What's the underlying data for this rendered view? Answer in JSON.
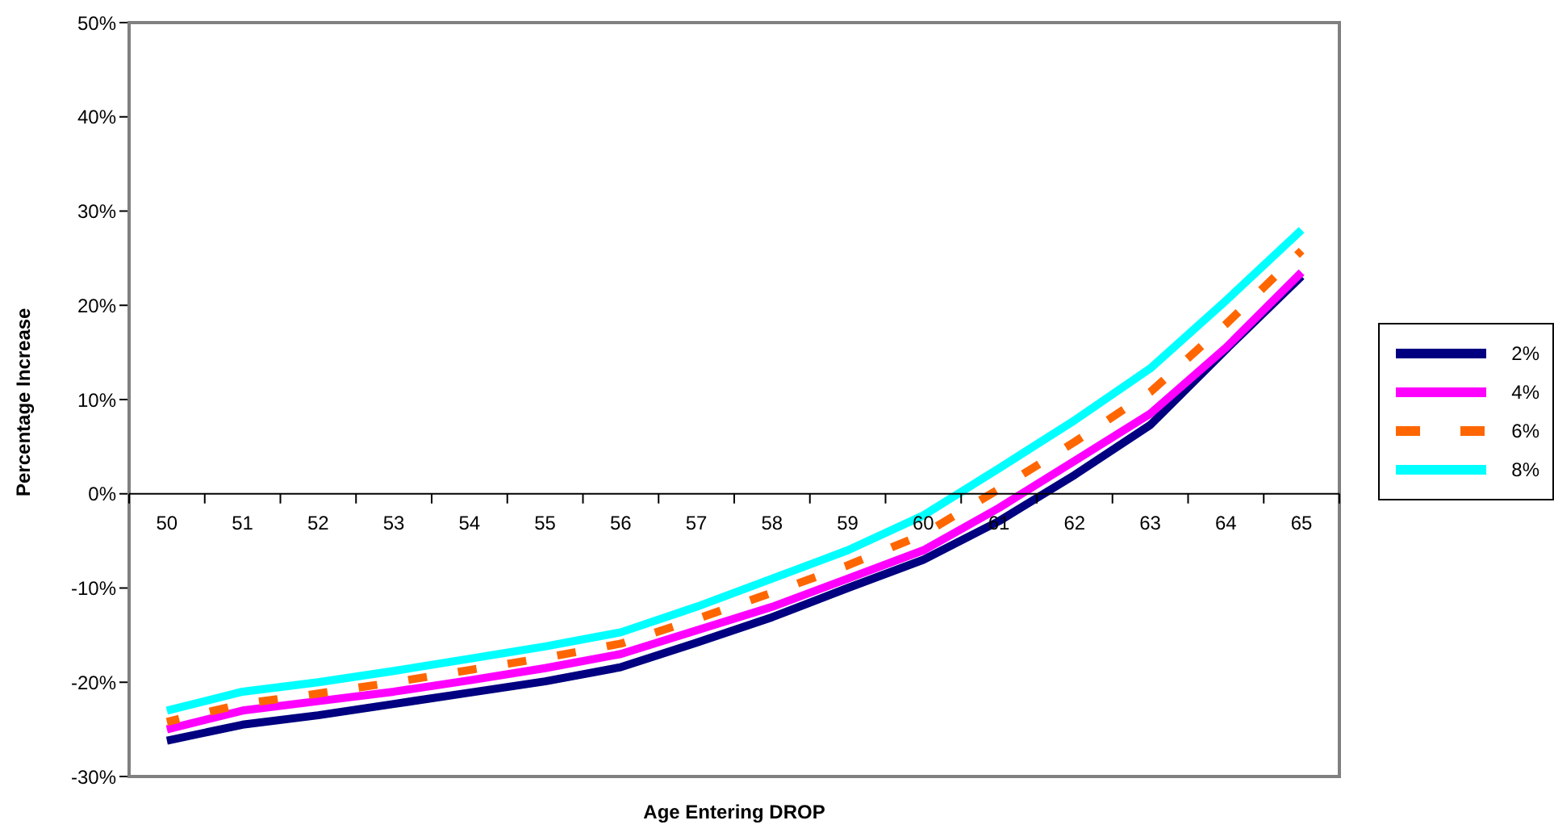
{
  "chart_data": {
    "type": "line",
    "xlabel": "Age Entering DROP",
    "ylabel": "Percentage Increase",
    "categories": [
      "50",
      "51",
      "52",
      "53",
      "54",
      "55",
      "56",
      "57",
      "58",
      "59",
      "60",
      "61",
      "62",
      "63",
      "64",
      "65"
    ],
    "series": [
      {
        "name": "2%",
        "color": "#000080",
        "values": [
          -26.2,
          -24.5,
          -23.5,
          -22.3,
          -21.1,
          -19.9,
          -18.4,
          -15.8,
          -13.1,
          -10,
          -7,
          -2.9,
          2,
          7.3,
          15.3,
          23.1
        ]
      },
      {
        "name": "4%",
        "color": "#ff00ff",
        "values": [
          -25,
          -23,
          -22,
          -21,
          -19.8,
          -18.5,
          -17,
          -14.5,
          -12,
          -9,
          -6,
          -1.5,
          3.5,
          8.5,
          15.5,
          23.5
        ]
      },
      {
        "name": "6%",
        "color": "#ff6600",
        "line_style": "dashed",
        "values": [
          -24.2,
          -22.3,
          -21.2,
          -20,
          -18.7,
          -17.4,
          -15.9,
          -13.3,
          -10.5,
          -7.6,
          -4.3,
          0.5,
          5.5,
          10.8,
          18,
          25.8
        ]
      },
      {
        "name": "8%",
        "color": "#00ffff",
        "values": [
          -23,
          -21,
          -20,
          -18.8,
          -17.5,
          -16.2,
          -14.7,
          -12,
          -9,
          -6,
          -2.3,
          2.7,
          7.8,
          13.3,
          20.5,
          28
        ]
      }
    ],
    "ylim": [
      -30,
      50
    ],
    "yticks": [
      {
        "value": -30,
        "label": "-30%"
      },
      {
        "value": -20,
        "label": "-20%"
      },
      {
        "value": -10,
        "label": "-10%"
      },
      {
        "value": 0,
        "label": "0%"
      },
      {
        "value": 10,
        "label": "10%"
      },
      {
        "value": 20,
        "label": "20%"
      },
      {
        "value": 30,
        "label": "30%"
      },
      {
        "value": 40,
        "label": "40%"
      },
      {
        "value": 50,
        "label": "50%"
      }
    ],
    "grid": false,
    "legend": "right",
    "marker": "none",
    "line_style": "solid"
  }
}
